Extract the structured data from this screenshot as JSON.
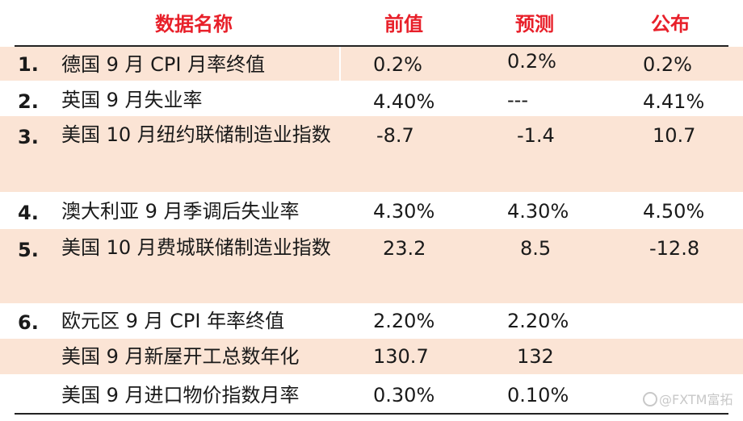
{
  "header": {
    "name": "数据名称",
    "prev": "前值",
    "forecast": "预测",
    "actual": "公布"
  },
  "rows": [
    {
      "idx": "1.",
      "name": "德国 9 月 CPI 月率终值",
      "prev": "0.2%",
      "forecast": "0.2%",
      "actual": "0.2%"
    },
    {
      "idx": "2.",
      "name": "英国 9 月失业率",
      "prev": "4.40%",
      "forecast": "---",
      "actual": "4.41%"
    },
    {
      "idx": "3.",
      "name": "美国 10 月纽约联储制造业指数",
      "prev": "-8.7",
      "forecast": "-1.4",
      "actual": "10.7"
    },
    {
      "idx": "4.",
      "name": "澳大利亚 9 月季调后失业率",
      "prev": "4.30%",
      "forecast": "4.30%",
      "actual": "4.50%"
    },
    {
      "idx": "5.",
      "name": "美国 10 月费城联储制造业指数",
      "prev": "23.2",
      "forecast": "8.5",
      "actual": "-12.8"
    },
    {
      "idx": "6.",
      "name": "欧元区 9 月 CPI 年率终值",
      "prev": "2.20%",
      "forecast": "2.20%",
      "actual": ""
    },
    {
      "idx": "",
      "name": "美国 9 月新屋开工总数年化",
      "prev": "130.7",
      "forecast": "132",
      "actual": ""
    },
    {
      "idx": "",
      "name": "美国 9 月进口物价指数月率",
      "prev": "0.30%",
      "forecast": "0.10%",
      "actual": ""
    }
  ],
  "watermark": {
    "text": "@FXTM富拓"
  }
}
